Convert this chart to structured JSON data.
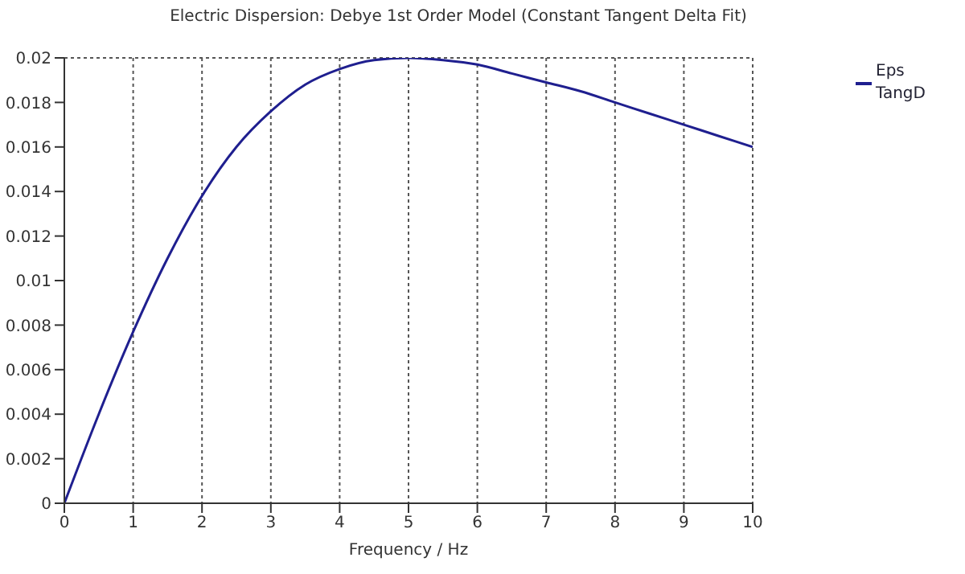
{
  "chart_data": {
    "type": "line",
    "title": "Electric Dispersion: Debye 1st Order Model (Constant Tangent Delta Fit)",
    "xlabel": "Frequency / Hz",
    "x": [
      0,
      0.5,
      1,
      1.5,
      2,
      2.5,
      3,
      3.5,
      4,
      4.5,
      5,
      5.5,
      6,
      6.5,
      7,
      7.5,
      8,
      8.5,
      9,
      9.5,
      10
    ],
    "series": [
      {
        "name": "Eps TangD",
        "color": "#1f1f8f",
        "values": [
          0,
          0.004,
          0.0077,
          0.011,
          0.0138,
          0.016,
          0.0176,
          0.0188,
          0.0195,
          0.0199,
          0.02,
          0.0199,
          0.0197,
          0.0193,
          0.0189,
          0.0185,
          0.018,
          0.0175,
          0.017,
          0.0165,
          0.016
        ]
      }
    ],
    "xlim": [
      0,
      10
    ],
    "xticks": [
      0,
      1,
      2,
      3,
      4,
      5,
      6,
      7,
      8,
      9,
      10
    ],
    "ylim": [
      0,
      0.02
    ],
    "yticks": [
      0,
      0.002,
      0.004,
      0.006,
      0.008,
      0.01,
      0.012,
      0.014,
      0.016,
      0.018,
      0.02
    ],
    "grid": true,
    "legend": "top right",
    "marker": "none",
    "line_style": "solid"
  }
}
